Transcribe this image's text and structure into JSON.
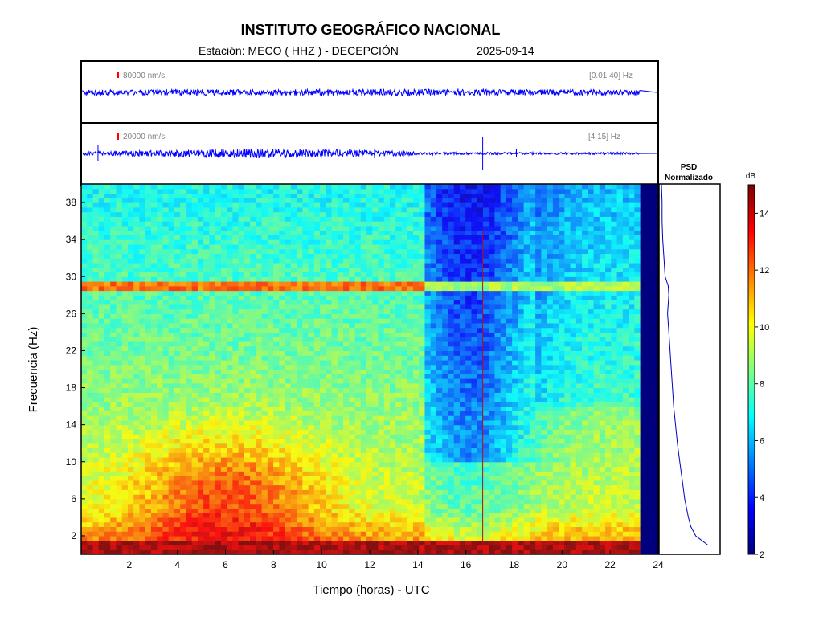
{
  "header": {
    "title": "INSTITUTO GEOGRÁFICO NACIONAL",
    "station": "Estación:  MECO ( HHZ ) - DECEPCIÓN",
    "date": "2025-09-14"
  },
  "traces": [
    {
      "scale_label": "80000 nm/s",
      "band_label": "[0.01 40] Hz",
      "color": "#0000ff",
      "scale_color": "#ff0000"
    },
    {
      "scale_label": "20000 nm/s",
      "band_label": "[4 15] Hz",
      "color": "#0000ff",
      "scale_color": "#ff0000"
    }
  ],
  "psd": {
    "title_line1": "PSD",
    "title_line2": "Normalizado"
  },
  "colorbar": {
    "label": "dB",
    "range": [
      2,
      15
    ],
    "ticks": [
      "2",
      "4",
      "6",
      "8",
      "10",
      "12",
      "14"
    ],
    "colormap": "jet"
  },
  "chart_data": {
    "type": "heatmap",
    "title": "INSTITUTO GEOGRÁFICO NACIONAL",
    "xlabel": "Tiempo (horas) - UTC",
    "ylabel": "Frecuencia  (Hz)",
    "xlim": [
      0,
      24
    ],
    "ylim": [
      0,
      40
    ],
    "xticks": [
      "2",
      "4",
      "6",
      "8",
      "10",
      "12",
      "14",
      "16",
      "18",
      "20",
      "22",
      "24"
    ],
    "yticks": [
      "2",
      "6",
      "10",
      "14",
      "18",
      "22",
      "26",
      "30",
      "34",
      "38"
    ],
    "data_end_hour": 23.25,
    "colorbar_range_db": [
      2,
      15
    ],
    "features": {
      "low_freq_band_hz": [
        0,
        1.5
      ],
      "low_freq_band_db": 14.5,
      "tonal_line_hz": 29,
      "tonal_line_db": 12,
      "spike_hour": 16.7
    },
    "psd_normalized": {
      "freq_hz": [
        1,
        2,
        3,
        4,
        6,
        8,
        10,
        12,
        14,
        16,
        18,
        20,
        22,
        24,
        26,
        27,
        28,
        29,
        30,
        32,
        34,
        36,
        38,
        40
      ],
      "value": [
        0.8,
        0.6,
        0.52,
        0.48,
        0.42,
        0.38,
        0.34,
        0.3,
        0.27,
        0.24,
        0.22,
        0.2,
        0.18,
        0.16,
        0.14,
        0.15,
        0.16,
        0.15,
        0.1,
        0.08,
        0.06,
        0.05,
        0.05,
        0.04
      ]
    }
  }
}
